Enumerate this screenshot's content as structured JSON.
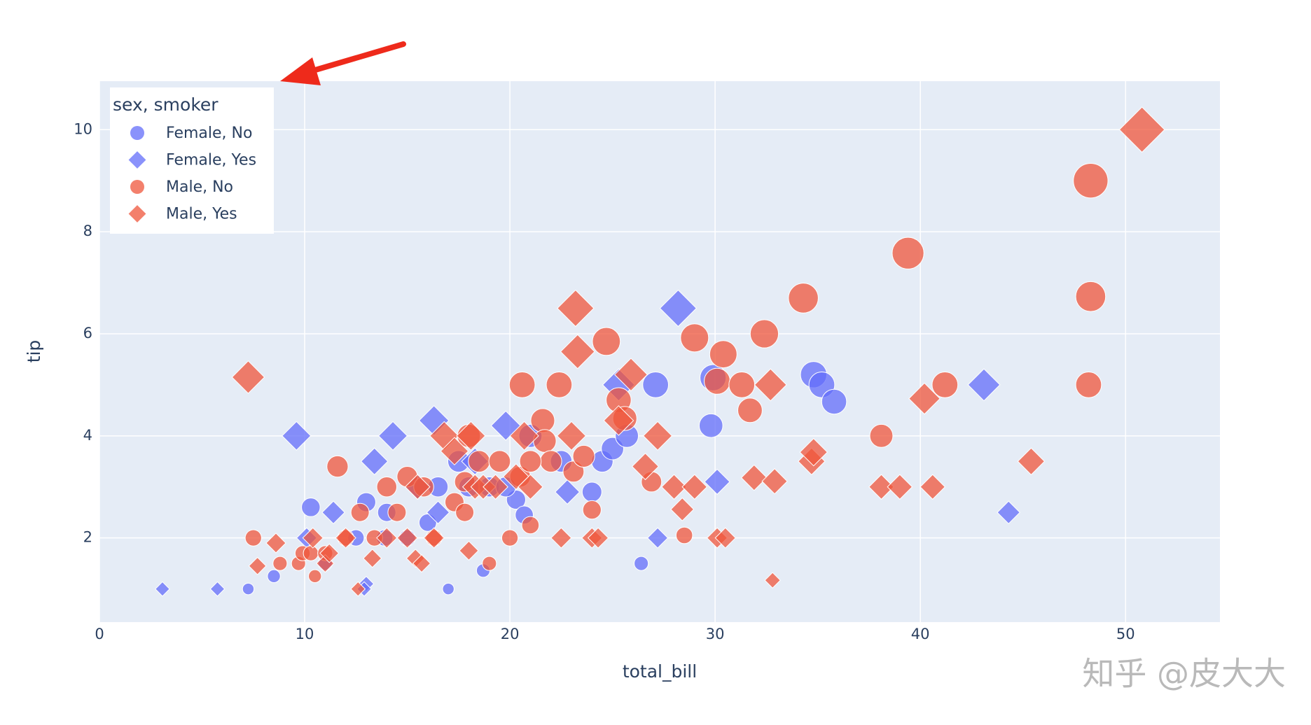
{
  "chart_data": {
    "type": "scatter",
    "x_label": "total_bill",
    "y_label": "tip",
    "legend_title": "sex, smoker",
    "legend_position": "top-left",
    "xlim": [
      0,
      54.6
    ],
    "ylim": [
      0.35,
      10.95
    ],
    "xticks": [
      0,
      10,
      20,
      30,
      40,
      50
    ],
    "yticks": [
      2,
      4,
      6,
      8,
      10
    ],
    "grid": true,
    "series": [
      {
        "name": "Female, No",
        "color": "#636efa",
        "symbol": "circle",
        "x": [
          7.25,
          8.5,
          10.3,
          11.0,
          12.5,
          13.0,
          13.9,
          15.0,
          16.0,
          16.5,
          17.0,
          17.5,
          18.7,
          18.0,
          19.0,
          20.3,
          20.7,
          22.5,
          24.0,
          24.5,
          25.0,
          25.7,
          26.4,
          27.1,
          29.8,
          29.9,
          34.8,
          35.2,
          35.8,
          21.0,
          19.8,
          14.0
        ],
        "values": [
          1.0,
          1.25,
          2.6,
          1.5,
          2.0,
          2.7,
          2.0,
          2.0,
          2.3,
          3.0,
          1.0,
          3.5,
          1.36,
          3.0,
          3.0,
          2.75,
          2.45,
          3.5,
          2.9,
          3.5,
          3.75,
          4.0,
          1.5,
          5.0,
          4.2,
          5.14,
          5.2,
          5.0,
          4.67,
          4.0,
          3.0,
          2.5
        ]
      },
      {
        "name": "Female, Yes",
        "color": "#636efa",
        "symbol": "diamond",
        "x": [
          3.07,
          5.75,
          9.6,
          10.1,
          11.4,
          13.4,
          14.3,
          13.0,
          16.3,
          16.5,
          15.5,
          19.8,
          22.8,
          25.3,
          27.2,
          28.2,
          30.1,
          43.1,
          44.3,
          18.3,
          12.9
        ],
        "values": [
          1.0,
          1.0,
          4.0,
          2.0,
          2.5,
          3.5,
          4.0,
          1.1,
          4.3,
          2.5,
          3.0,
          4.2,
          2.9,
          5.0,
          2.0,
          6.5,
          3.1,
          5.0,
          2.5,
          3.5,
          1.0
        ]
      },
      {
        "name": "Male, No",
        "color": "#EF553B",
        "symbol": "circle",
        "x": [
          7.5,
          8.8,
          9.7,
          9.9,
          10.3,
          10.5,
          11.0,
          11.6,
          12.0,
          12.7,
          13.4,
          14.0,
          14.5,
          15.0,
          15.8,
          16.3,
          17.3,
          17.8,
          18.0,
          18.5,
          19.0,
          19.5,
          20.0,
          20.5,
          21.0,
          21.6,
          21.7,
          22.0,
          22.4,
          23.1,
          23.6,
          24.0,
          24.7,
          25.3,
          25.6,
          26.9,
          28.5,
          29.0,
          30.1,
          30.4,
          31.3,
          31.7,
          32.4,
          34.3,
          38.1,
          39.4,
          41.2,
          48.2,
          48.3,
          48.3,
          20.6,
          21.0,
          17.8
        ],
        "values": [
          2.0,
          1.5,
          1.5,
          1.7,
          1.7,
          1.25,
          1.7,
          3.4,
          2.0,
          2.5,
          2.0,
          3.0,
          2.5,
          3.2,
          3.0,
          2.0,
          2.7,
          2.5,
          4.0,
          3.5,
          1.5,
          3.5,
          2.0,
          3.2,
          2.25,
          4.3,
          3.9,
          3.5,
          5.0,
          3.3,
          3.6,
          2.55,
          5.85,
          4.7,
          4.34,
          3.1,
          2.05,
          5.92,
          5.07,
          5.6,
          5.0,
          4.5,
          6.0,
          6.7,
          4.0,
          7.58,
          5.0,
          5.0,
          6.73,
          9.0,
          5.0,
          3.5,
          3.1
        ]
      },
      {
        "name": "Male, Yes",
        "color": "#EF553B",
        "symbol": "diamond",
        "x": [
          7.25,
          7.7,
          8.6,
          10.4,
          11.0,
          11.2,
          12.0,
          12.6,
          13.3,
          14.0,
          15.0,
          15.4,
          15.7,
          15.5,
          16.3,
          16.8,
          17.3,
          18.0,
          18.3,
          18.1,
          18.7,
          19.3,
          20.3,
          20.7,
          21.0,
          22.5,
          23.0,
          23.2,
          23.3,
          24.0,
          24.3,
          25.3,
          25.9,
          26.6,
          27.2,
          28.0,
          28.4,
          29.0,
          30.1,
          30.5,
          31.9,
          32.7,
          32.8,
          32.9,
          34.7,
          34.8,
          38.1,
          39.0,
          40.2,
          40.6,
          45.4,
          50.8
        ],
        "values": [
          5.15,
          1.45,
          1.9,
          2.0,
          1.5,
          1.7,
          2.0,
          1.0,
          1.6,
          2.0,
          2.0,
          1.6,
          1.5,
          3.0,
          2.0,
          4.0,
          3.7,
          1.75,
          3.0,
          4.0,
          3.0,
          3.0,
          3.2,
          4.0,
          3.0,
          2.0,
          4.0,
          6.5,
          5.65,
          2.0,
          2.0,
          4.3,
          5.2,
          3.4,
          4.0,
          3.0,
          2.56,
          3.0,
          2.0,
          2.0,
          3.18,
          5.0,
          1.17,
          3.11,
          3.5,
          3.68,
          3.0,
          3.0,
          4.73,
          3.0,
          3.5,
          10.0
        ]
      }
    ]
  },
  "watermark": "知乎 @皮大大"
}
